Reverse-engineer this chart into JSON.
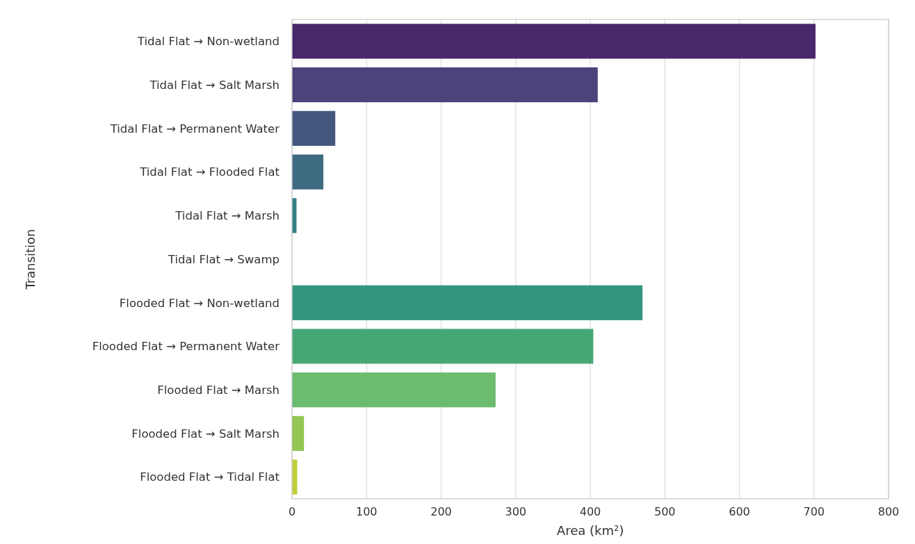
{
  "chart_data": {
    "type": "bar",
    "orientation": "horizontal",
    "xlabel": "Area (km²)",
    "ylabel": "Transition",
    "categories": [
      "Tidal Flat → Non-wetland",
      "Tidal Flat → Salt Marsh",
      "Tidal Flat → Permanent Water",
      "Tidal Flat → Flooded Flat",
      "Tidal Flat → Marsh",
      "Tidal Flat → Swamp",
      "Flooded Flat → Non-wetland",
      "Flooded Flat → Permanent Water",
      "Flooded Flat → Marsh",
      "Flooded Flat → Salt Marsh",
      "Flooded Flat → Tidal Flat"
    ],
    "values": [
      702,
      410,
      58,
      42,
      6,
      0,
      470,
      404,
      273,
      16,
      7
    ],
    "colors": [
      "#48276a",
      "#4b437a",
      "#44577e",
      "#3e6a82",
      "#337f85",
      "#2a9087",
      "#34957e",
      "#47a877",
      "#6cbb6f",
      "#93c652",
      "#c0cf38"
    ],
    "xlim": [
      0,
      800
    ],
    "xticks": [
      0,
      100,
      200,
      300,
      400,
      500,
      600,
      700,
      800
    ],
    "grid": "x"
  }
}
